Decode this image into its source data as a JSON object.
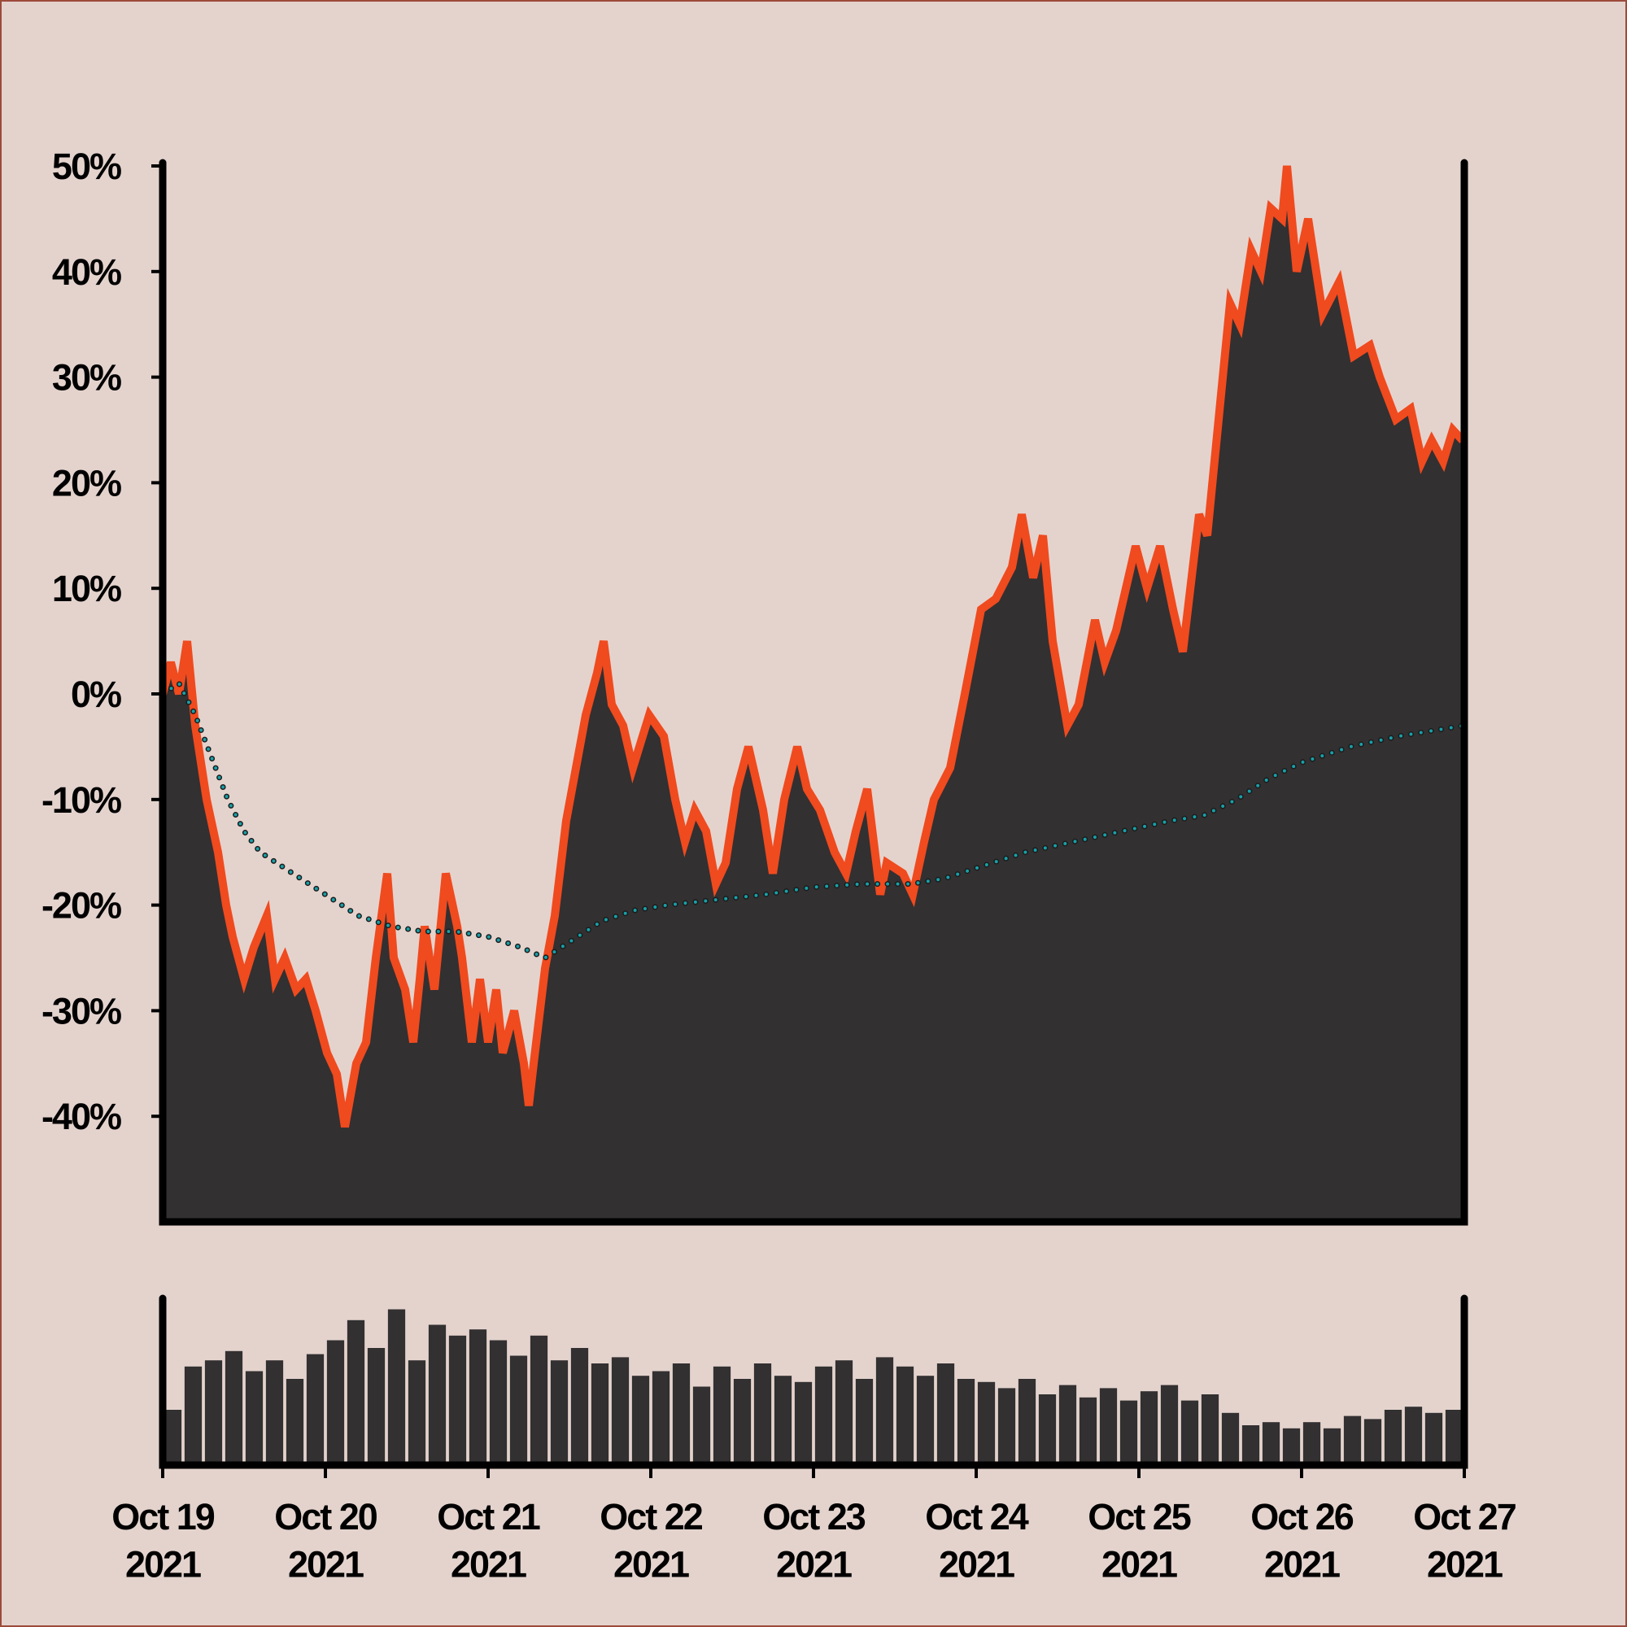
{
  "chart_data": [
    {
      "type": "area",
      "xlim": [
        0,
        8
      ],
      "ylim": [
        -50,
        50
      ],
      "yticks": [
        {
          "value": -40,
          "label": "-40%"
        },
        {
          "value": -30,
          "label": "-30%"
        },
        {
          "value": -20,
          "label": "-20%"
        },
        {
          "value": -10,
          "label": "-10%"
        },
        {
          "value": 0,
          "label": "0%"
        },
        {
          "value": 10,
          "label": "10%"
        },
        {
          "value": 20,
          "label": "20%"
        },
        {
          "value": 30,
          "label": "30%"
        },
        {
          "value": 40,
          "label": "40%"
        },
        {
          "value": 50,
          "label": "50%"
        }
      ],
      "series": [
        {
          "color": "#f04a1f",
          "fill": "#323031",
          "style": "area",
          "x": [
            0,
            0.05,
            0.1,
            0.13,
            0.15,
            0.2,
            0.27,
            0.34,
            0.39,
            0.43,
            0.5,
            0.56,
            0.64,
            0.69,
            0.75,
            0.82,
            0.88,
            0.94,
            1.01,
            1.07,
            1.12,
            1.19,
            1.25,
            1.31,
            1.38,
            1.42,
            1.49,
            1.54,
            1.58,
            1.61,
            1.67,
            1.74,
            1.81,
            1.84,
            1.9,
            1.95,
            2.0,
            2.05,
            2.09,
            2.16,
            2.22,
            2.25,
            2.28,
            2.35,
            2.41,
            2.48,
            2.54,
            2.6,
            2.67,
            2.71,
            2.76,
            2.83,
            2.89,
            2.95,
            2.99,
            3.08,
            3.15,
            3.21,
            3.27,
            3.34,
            3.4,
            3.46,
            3.53,
            3.6,
            3.69,
            3.75,
            3.82,
            3.9,
            3.96,
            4.04,
            4.13,
            4.2,
            4.26,
            4.33,
            4.41,
            4.45,
            4.55,
            4.61,
            4.68,
            4.74,
            4.84,
            4.93,
            5.03,
            5.12,
            5.22,
            5.28,
            5.35,
            5.41,
            5.47,
            5.56,
            5.63,
            5.73,
            5.79,
            5.86,
            5.92,
            5.98,
            6.05,
            6.13,
            6.21,
            6.27,
            6.37,
            6.42,
            6.56,
            6.62,
            6.69,
            6.75,
            6.81,
            6.88,
            6.91,
            6.97,
            7.04,
            7.13,
            7.23,
            7.32,
            7.42,
            7.48,
            7.58,
            7.67,
            7.74,
            7.8,
            7.87,
            7.93,
            7.99
          ],
          "values": [
            0,
            3,
            0,
            3,
            5,
            -3,
            -10,
            -15,
            -20,
            -23,
            -27,
            -24,
            -21,
            -27,
            -25,
            -28,
            -27,
            -30,
            -34,
            -36,
            -41,
            -35,
            -33,
            -25,
            -17,
            -25,
            -28,
            -33,
            -27,
            -22,
            -28,
            -17,
            -22,
            -25,
            -33,
            -27,
            -33,
            -28,
            -34,
            -30,
            -35,
            -39,
            -35,
            -26,
            -21,
            -12,
            -7,
            -2,
            2,
            5,
            -1,
            -3,
            -7,
            -4,
            -2,
            -4,
            -10,
            -14,
            -11,
            -13,
            -18,
            -16,
            -9,
            -5,
            -11,
            -17,
            -10,
            -5,
            -9,
            -11,
            -15,
            -17,
            -13,
            -9,
            -19,
            -16,
            -17,
            -19,
            -14,
            -10,
            -7,
            0,
            8,
            9,
            12,
            17,
            11,
            15,
            5,
            -3,
            -1,
            7,
            3,
            6,
            10,
            14,
            10,
            14,
            8,
            4,
            17,
            15,
            37,
            35,
            42,
            40,
            46,
            45,
            50,
            40,
            45,
            36,
            39,
            32,
            33,
            30,
            26,
            27,
            22,
            24,
            22,
            25,
            24
          ]
        },
        {
          "color": "#17a0a8",
          "style": "dotted",
          "x": [
            0,
            0.1,
            0.2,
            0.3,
            0.4,
            0.5,
            0.6,
            0.8,
            1.0,
            1.2,
            1.4,
            1.6,
            1.8,
            2.0,
            2.2,
            2.35,
            2.5,
            2.7,
            2.9,
            3.1,
            3.4,
            3.7,
            4.0,
            4.3,
            4.6,
            4.8,
            5.0,
            5.3,
            5.6,
            5.9,
            6.2,
            6.4,
            6.6,
            6.8,
            7.0,
            7.3,
            7.6,
            8.0
          ],
          "values": [
            0,
            1,
            -2,
            -6,
            -10,
            -13,
            -15,
            -17,
            -19,
            -21,
            -22,
            -22.5,
            -22.5,
            -23,
            -24,
            -25,
            -23.5,
            -21.5,
            -20.5,
            -20,
            -19.5,
            -19,
            -18.3,
            -18,
            -18,
            -17.5,
            -16.5,
            -15,
            -14,
            -13,
            -12,
            -11.5,
            -10,
            -8,
            -6.5,
            -5,
            -4,
            -3
          ]
        }
      ]
    },
    {
      "type": "bar",
      "color": "#323031",
      "xlim": [
        0,
        8
      ],
      "ylim": [
        0,
        100
      ],
      "xticks": [
        {
          "value": 0,
          "label": "Oct 19\n2021"
        },
        {
          "value": 1,
          "label": "Oct 20\n2021"
        },
        {
          "value": 2,
          "label": "Oct 21\n2021"
        },
        {
          "value": 3,
          "label": "Oct 22\n2021"
        },
        {
          "value": 4,
          "label": "Oct 23\n2021"
        },
        {
          "value": 5,
          "label": "Oct 24\n2021"
        },
        {
          "value": 6,
          "label": "Oct 25\n2021"
        },
        {
          "value": 7,
          "label": "Oct 26\n2021"
        },
        {
          "value": 8,
          "label": "Oct 27\n2021"
        }
      ],
      "x": [
        0.0625,
        0.1875,
        0.3125,
        0.4375,
        0.5625,
        0.6875,
        0.8125,
        0.9375,
        1.0625,
        1.1875,
        1.3125,
        1.4375,
        1.5625,
        1.6875,
        1.8125,
        1.9375,
        2.0625,
        2.1875,
        2.3125,
        2.4375,
        2.5625,
        2.6875,
        2.8125,
        2.9375,
        3.0625,
        3.1875,
        3.3125,
        3.4375,
        3.5625,
        3.6875,
        3.8125,
        3.9375,
        4.0625,
        4.1875,
        4.3125,
        4.4375,
        4.5625,
        4.6875,
        4.8125,
        4.9375,
        5.0625,
        5.1875,
        5.3125,
        5.4375,
        5.5625,
        5.6875,
        5.8125,
        5.9375,
        6.0625,
        6.1875,
        6.3125,
        6.4375,
        6.5625,
        6.6875,
        6.8125,
        6.9375,
        7.0625,
        7.1875,
        7.3125,
        7.4375,
        7.5625,
        7.6875,
        7.8125,
        7.9375
      ],
      "values": [
        30,
        58,
        62,
        68,
        55,
        62,
        50,
        66,
        75,
        88,
        70,
        95,
        62,
        85,
        78,
        82,
        75,
        65,
        78,
        62,
        70,
        60,
        64,
        52,
        55,
        60,
        45,
        58,
        50,
        60,
        52,
        48,
        58,
        62,
        50,
        64,
        58,
        52,
        60,
        50,
        48,
        44,
        50,
        40,
        46,
        38,
        44,
        36,
        42,
        46,
        36,
        40,
        28,
        20,
        22,
        18,
        22,
        18,
        26,
        24,
        30,
        32,
        28,
        30
      ]
    }
  ]
}
